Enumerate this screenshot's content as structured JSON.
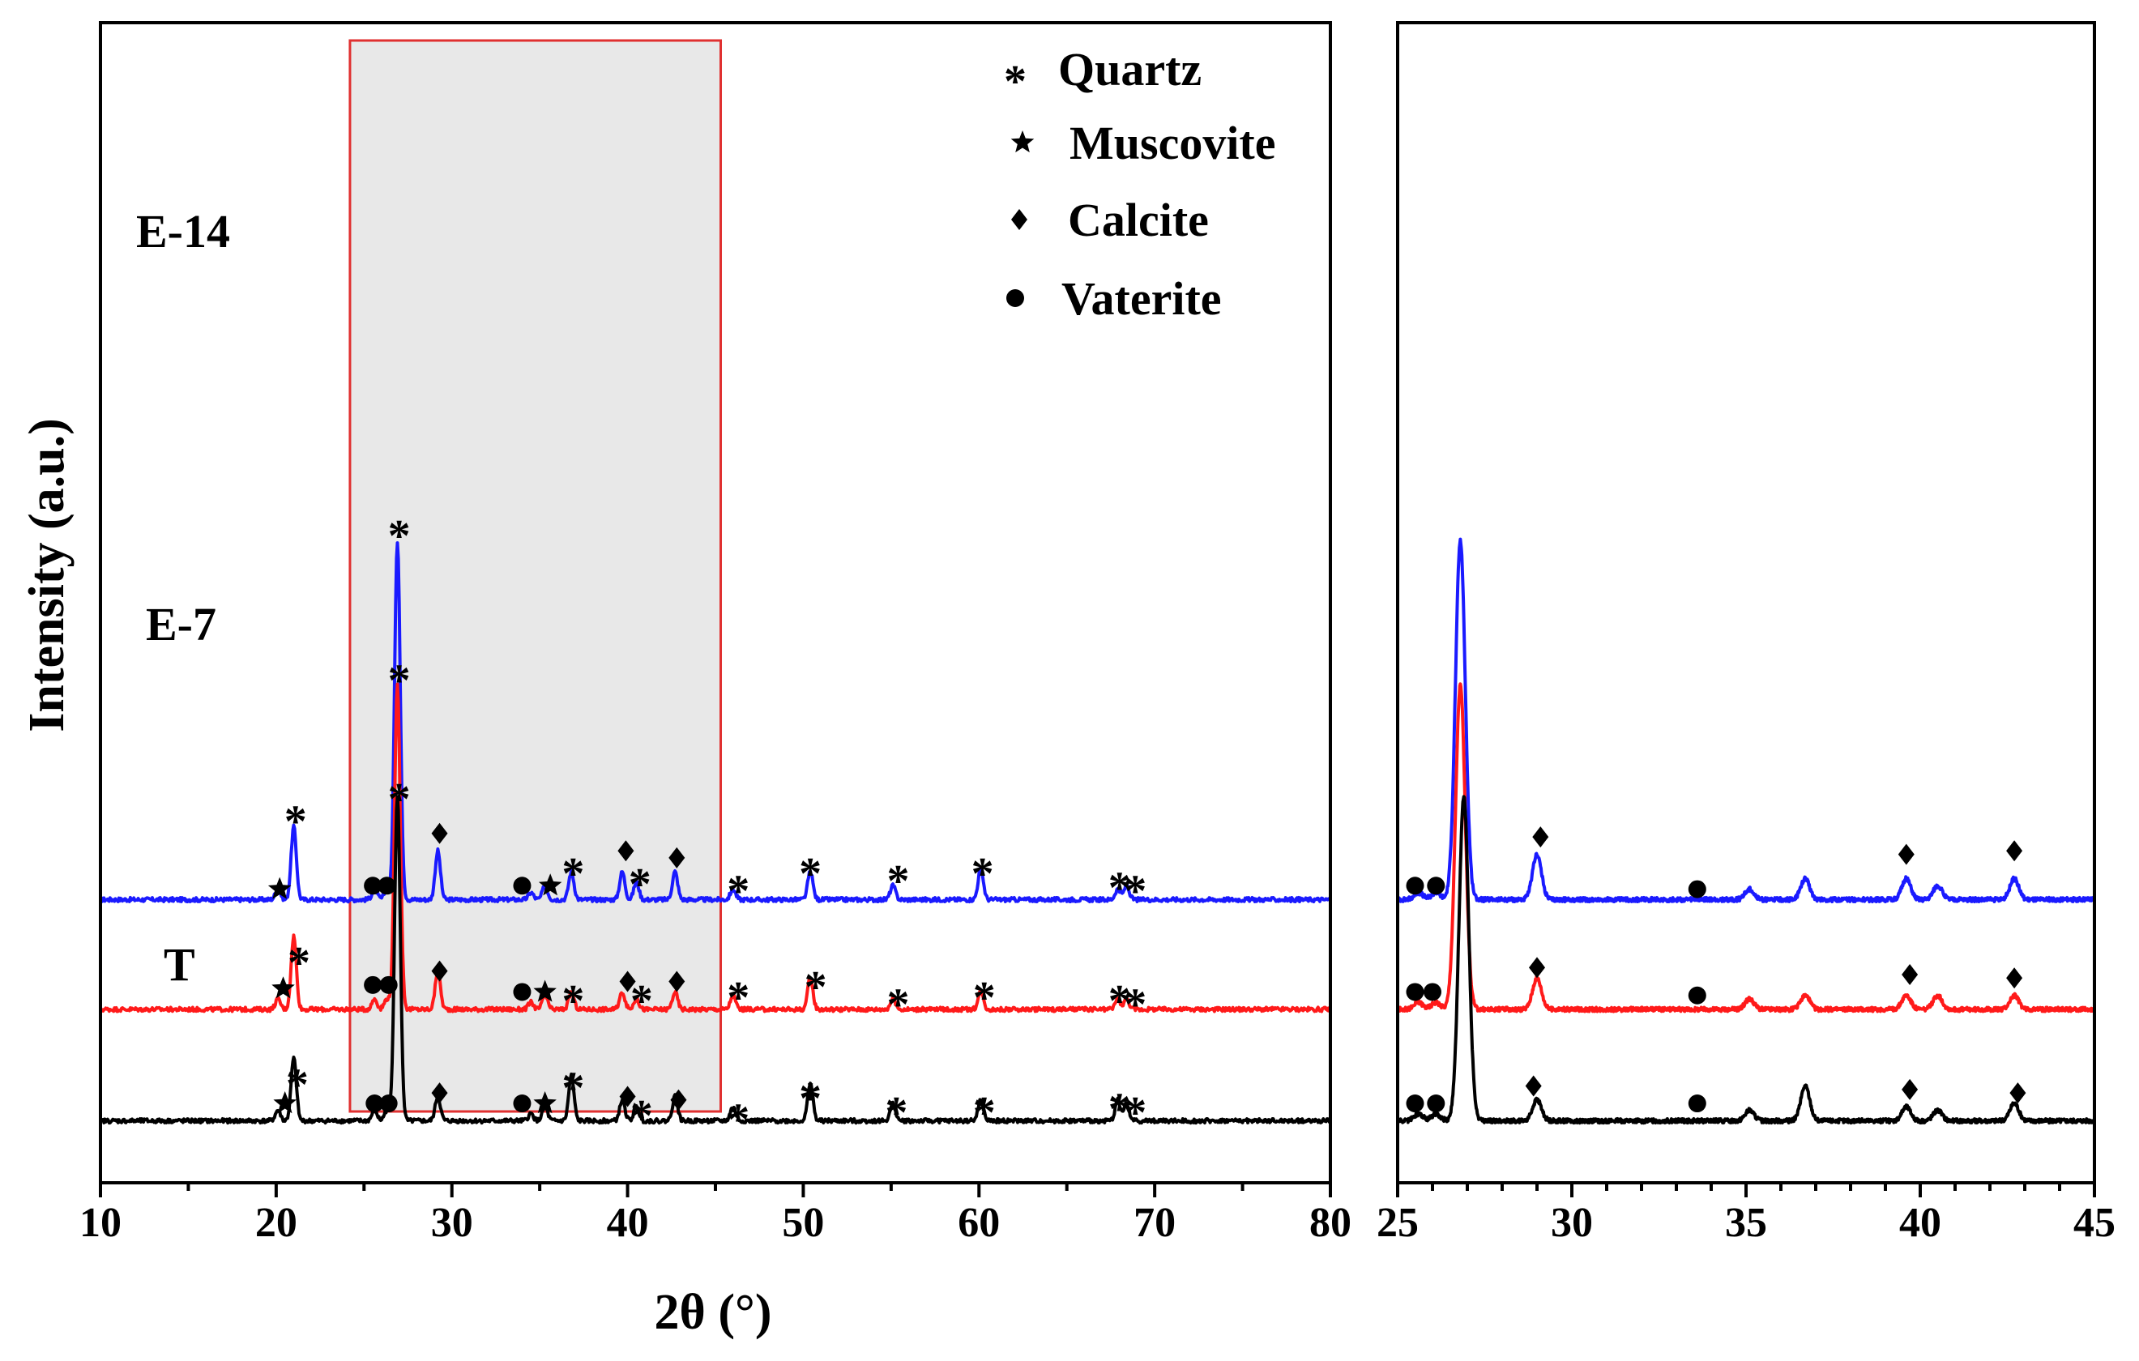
{
  "colors": {
    "E-14": "#1a1aff",
    "E-7": "#ff1a1a",
    "T": "#000000",
    "highlight_fill": "#d6d6d6",
    "highlight_border": "#e03030",
    "axis": "#000000"
  },
  "chart_data": [
    {
      "id": "main",
      "type": "line",
      "xlabel": "2θ (°)",
      "ylabel": "Intensity (a.u.)",
      "xlim": [
        10,
        80
      ],
      "x_ticks": [
        10,
        20,
        30,
        40,
        50,
        60,
        70,
        80
      ],
      "x_minor_step": 5,
      "highlight_range": [
        24.2,
        45.3
      ],
      "series": [
        {
          "name": "E-14",
          "color": "#1a1aff",
          "baseline": 0.65,
          "peaks": [
            {
              "x": 20.1,
              "h": 0.03
            },
            {
              "x": 21.0,
              "h": 0.21
            },
            {
              "x": 25.6,
              "h": 0.03
            },
            {
              "x": 26.3,
              "h": 0.03
            },
            {
              "x": 26.9,
              "h": 1.03
            },
            {
              "x": 29.2,
              "h": 0.14
            },
            {
              "x": 34.5,
              "h": 0.02
            },
            {
              "x": 35.3,
              "h": 0.04
            },
            {
              "x": 36.8,
              "h": 0.08
            },
            {
              "x": 39.7,
              "h": 0.08
            },
            {
              "x": 40.5,
              "h": 0.05
            },
            {
              "x": 42.7,
              "h": 0.08
            },
            {
              "x": 46.0,
              "h": 0.03
            },
            {
              "x": 50.4,
              "h": 0.08
            },
            {
              "x": 55.1,
              "h": 0.04
            },
            {
              "x": 60.1,
              "h": 0.09
            },
            {
              "x": 67.9,
              "h": 0.03
            },
            {
              "x": 68.4,
              "h": 0.04
            }
          ]
        },
        {
          "name": "E-7",
          "color": "#ff1a1a",
          "baseline": 0.335,
          "peaks": [
            {
              "x": 20.1,
              "h": 0.03
            },
            {
              "x": 21.0,
              "h": 0.21
            },
            {
              "x": 25.6,
              "h": 0.03
            },
            {
              "x": 26.3,
              "h": 0.03
            },
            {
              "x": 26.9,
              "h": 0.93
            },
            {
              "x": 29.2,
              "h": 0.11
            },
            {
              "x": 34.5,
              "h": 0.02
            },
            {
              "x": 35.3,
              "h": 0.04
            },
            {
              "x": 36.8,
              "h": 0.05
            },
            {
              "x": 39.7,
              "h": 0.05
            },
            {
              "x": 40.5,
              "h": 0.03
            },
            {
              "x": 42.7,
              "h": 0.05
            },
            {
              "x": 46.0,
              "h": 0.04
            },
            {
              "x": 50.4,
              "h": 0.09
            },
            {
              "x": 55.1,
              "h": 0.03
            },
            {
              "x": 60.1,
              "h": 0.05
            },
            {
              "x": 67.9,
              "h": 0.03
            },
            {
              "x": 68.4,
              "h": 0.03
            }
          ]
        },
        {
          "name": "T",
          "color": "#000000",
          "baseline": 0.015,
          "peaks": [
            {
              "x": 20.1,
              "h": 0.03
            },
            {
              "x": 21.0,
              "h": 0.18
            },
            {
              "x": 25.6,
              "h": 0.03
            },
            {
              "x": 26.3,
              "h": 0.03
            },
            {
              "x": 26.9,
              "h": 0.93
            },
            {
              "x": 29.2,
              "h": 0.07
            },
            {
              "x": 34.5,
              "h": 0.02
            },
            {
              "x": 35.3,
              "h": 0.04
            },
            {
              "x": 36.8,
              "h": 0.13
            },
            {
              "x": 39.7,
              "h": 0.06
            },
            {
              "x": 40.5,
              "h": 0.04
            },
            {
              "x": 42.7,
              "h": 0.07
            },
            {
              "x": 46.0,
              "h": 0.04
            },
            {
              "x": 50.4,
              "h": 0.11
            },
            {
              "x": 55.1,
              "h": 0.05
            },
            {
              "x": 60.1,
              "h": 0.06
            },
            {
              "x": 67.9,
              "h": 0.06
            },
            {
              "x": 68.4,
              "h": 0.05
            }
          ]
        }
      ],
      "sample_labels": [
        {
          "text": "E-14",
          "series": "E-14"
        },
        {
          "text": "E-7",
          "series": "E-7"
        },
        {
          "text": "T",
          "series": "T"
        }
      ],
      "markers": [
        {
          "series": "E-14",
          "symbol": "star",
          "x": 20.2,
          "dy": 0.03
        },
        {
          "series": "E-14",
          "symbol": "asterisk",
          "x": 21.1,
          "dy": 0.26
        },
        {
          "series": "E-14",
          "symbol": "circle",
          "x": 25.5,
          "dy": 0.04
        },
        {
          "series": "E-14",
          "symbol": "circle",
          "x": 26.3,
          "dy": 0.04
        },
        {
          "series": "E-14",
          "symbol": "asterisk",
          "x": 27.0,
          "dy": 1.08
        },
        {
          "series": "E-14",
          "symbol": "diamond",
          "x": 29.3,
          "dy": 0.19
        },
        {
          "series": "E-14",
          "symbol": "circle",
          "x": 34.0,
          "dy": 0.04
        },
        {
          "series": "E-14",
          "symbol": "star",
          "x": 35.6,
          "dy": 0.04
        },
        {
          "series": "E-14",
          "symbol": "asterisk",
          "x": 36.9,
          "dy": 0.11
        },
        {
          "series": "E-14",
          "symbol": "diamond",
          "x": 39.9,
          "dy": 0.14
        },
        {
          "series": "E-14",
          "symbol": "asterisk",
          "x": 40.7,
          "dy": 0.08
        },
        {
          "series": "E-14",
          "symbol": "diamond",
          "x": 42.8,
          "dy": 0.12
        },
        {
          "series": "E-14",
          "symbol": "asterisk",
          "x": 46.3,
          "dy": 0.06
        },
        {
          "series": "E-14",
          "symbol": "asterisk",
          "x": 50.4,
          "dy": 0.11
        },
        {
          "series": "E-14",
          "symbol": "asterisk",
          "x": 55.4,
          "dy": 0.09
        },
        {
          "series": "E-14",
          "symbol": "asterisk",
          "x": 60.2,
          "dy": 0.11
        },
        {
          "series": "E-14",
          "symbol": "asterisk",
          "x": 68.0,
          "dy": 0.07
        },
        {
          "series": "E-14",
          "symbol": "asterisk",
          "x": 68.9,
          "dy": 0.06
        },
        {
          "series": "E-7",
          "symbol": "star",
          "x": 20.4,
          "dy": 0.06
        },
        {
          "series": "E-7",
          "symbol": "asterisk",
          "x": 21.3,
          "dy": 0.17
        },
        {
          "series": "E-7",
          "symbol": "circle",
          "x": 25.5,
          "dy": 0.07
        },
        {
          "series": "E-7",
          "symbol": "circle",
          "x": 26.4,
          "dy": 0.07
        },
        {
          "series": "E-7",
          "symbol": "asterisk",
          "x": 27.0,
          "dy": 0.98
        },
        {
          "series": "E-7",
          "symbol": "diamond",
          "x": 29.3,
          "dy": 0.11
        },
        {
          "series": "E-7",
          "symbol": "circle",
          "x": 34.0,
          "dy": 0.05
        },
        {
          "series": "E-7",
          "symbol": "star",
          "x": 35.3,
          "dy": 0.05
        },
        {
          "series": "E-7",
          "symbol": "asterisk",
          "x": 36.9,
          "dy": 0.06
        },
        {
          "series": "E-7",
          "symbol": "diamond",
          "x": 40.0,
          "dy": 0.08
        },
        {
          "series": "E-7",
          "symbol": "asterisk",
          "x": 40.8,
          "dy": 0.06
        },
        {
          "series": "E-7",
          "symbol": "diamond",
          "x": 42.8,
          "dy": 0.08
        },
        {
          "series": "E-7",
          "symbol": "asterisk",
          "x": 46.3,
          "dy": 0.07
        },
        {
          "series": "E-7",
          "symbol": "asterisk",
          "x": 50.7,
          "dy": 0.1
        },
        {
          "series": "E-7",
          "symbol": "asterisk",
          "x": 55.4,
          "dy": 0.05
        },
        {
          "series": "E-7",
          "symbol": "asterisk",
          "x": 60.3,
          "dy": 0.07
        },
        {
          "series": "E-7",
          "symbol": "asterisk",
          "x": 68.0,
          "dy": 0.06
        },
        {
          "series": "E-7",
          "symbol": "asterisk",
          "x": 68.9,
          "dy": 0.05
        },
        {
          "series": "T",
          "symbol": "star",
          "x": 20.5,
          "dy": 0.05
        },
        {
          "series": "T",
          "symbol": "asterisk",
          "x": 21.2,
          "dy": 0.14
        },
        {
          "series": "T",
          "symbol": "circle",
          "x": 25.6,
          "dy": 0.05
        },
        {
          "series": "T",
          "symbol": "circle",
          "x": 26.4,
          "dy": 0.05
        },
        {
          "series": "T",
          "symbol": "asterisk",
          "x": 27.0,
          "dy": 0.96
        },
        {
          "series": "T",
          "symbol": "diamond",
          "x": 29.3,
          "dy": 0.08
        },
        {
          "series": "T",
          "symbol": "circle",
          "x": 34.0,
          "dy": 0.05
        },
        {
          "series": "T",
          "symbol": "star",
          "x": 35.3,
          "dy": 0.05
        },
        {
          "series": "T",
          "symbol": "asterisk",
          "x": 36.9,
          "dy": 0.13
        },
        {
          "series": "T",
          "symbol": "diamond",
          "x": 40.0,
          "dy": 0.07
        },
        {
          "series": "T",
          "symbol": "asterisk",
          "x": 40.8,
          "dy": 0.05
        },
        {
          "series": "T",
          "symbol": "diamond",
          "x": 42.9,
          "dy": 0.06
        },
        {
          "series": "T",
          "symbol": "asterisk",
          "x": 46.3,
          "dy": 0.04
        },
        {
          "series": "T",
          "symbol": "asterisk",
          "x": 50.4,
          "dy": 0.1
        },
        {
          "series": "T",
          "symbol": "asterisk",
          "x": 55.3,
          "dy": 0.06
        },
        {
          "series": "T",
          "symbol": "asterisk",
          "x": 60.3,
          "dy": 0.06
        },
        {
          "series": "T",
          "symbol": "asterisk",
          "x": 68.0,
          "dy": 0.07
        },
        {
          "series": "T",
          "symbol": "asterisk",
          "x": 68.9,
          "dy": 0.06
        }
      ],
      "legend": {
        "position": "top-right",
        "entries": [
          {
            "symbol": "asterisk",
            "label": "Quartz"
          },
          {
            "symbol": "star",
            "label": "Muscovite"
          },
          {
            "symbol": "diamond",
            "label": "Calcite"
          },
          {
            "symbol": "circle",
            "label": "Vaterite"
          }
        ]
      }
    },
    {
      "id": "inset",
      "type": "line",
      "xlim": [
        25,
        45
      ],
      "x_ticks": [
        25,
        30,
        35,
        40,
        45
      ],
      "x_minor_step": 1,
      "series": [
        {
          "name": "E-14",
          "color": "#1a1aff",
          "baseline": 0.65,
          "peaks": [
            {
              "x": 25.6,
              "h": 0.02
            },
            {
              "x": 26.1,
              "h": 0.02
            },
            {
              "x": 26.8,
              "h": 1.03
            },
            {
              "x": 29.0,
              "h": 0.13
            },
            {
              "x": 35.1,
              "h": 0.03
            },
            {
              "x": 36.7,
              "h": 0.06
            },
            {
              "x": 39.6,
              "h": 0.06
            },
            {
              "x": 40.5,
              "h": 0.04
            },
            {
              "x": 42.7,
              "h": 0.06
            }
          ]
        },
        {
          "name": "E-7",
          "color": "#ff1a1a",
          "baseline": 0.335,
          "peaks": [
            {
              "x": 25.6,
              "h": 0.02
            },
            {
              "x": 26.1,
              "h": 0.02
            },
            {
              "x": 26.8,
              "h": 0.93
            },
            {
              "x": 29.0,
              "h": 0.09
            },
            {
              "x": 35.1,
              "h": 0.03
            },
            {
              "x": 36.7,
              "h": 0.04
            },
            {
              "x": 39.6,
              "h": 0.04
            },
            {
              "x": 40.5,
              "h": 0.04
            },
            {
              "x": 42.7,
              "h": 0.04
            }
          ]
        },
        {
          "name": "T",
          "color": "#000000",
          "baseline": 0.015,
          "peaks": [
            {
              "x": 25.6,
              "h": 0.02
            },
            {
              "x": 26.1,
              "h": 0.02
            },
            {
              "x": 26.9,
              "h": 0.93
            },
            {
              "x": 29.0,
              "h": 0.06
            },
            {
              "x": 35.1,
              "h": 0.03
            },
            {
              "x": 36.7,
              "h": 0.1
            },
            {
              "x": 39.6,
              "h": 0.04
            },
            {
              "x": 40.5,
              "h": 0.03
            },
            {
              "x": 42.7,
              "h": 0.05
            }
          ]
        }
      ],
      "markers": [
        {
          "series": "E-14",
          "symbol": "circle",
          "x": 25.5,
          "dy": 0.04
        },
        {
          "series": "E-14",
          "symbol": "circle",
          "x": 26.1,
          "dy": 0.04
        },
        {
          "series": "E-14",
          "symbol": "diamond",
          "x": 29.1,
          "dy": 0.18
        },
        {
          "series": "E-14",
          "symbol": "circle",
          "x": 33.6,
          "dy": 0.03
        },
        {
          "series": "E-14",
          "symbol": "diamond",
          "x": 39.6,
          "dy": 0.13
        },
        {
          "series": "E-14",
          "symbol": "diamond",
          "x": 42.7,
          "dy": 0.14
        },
        {
          "series": "E-7",
          "symbol": "circle",
          "x": 25.5,
          "dy": 0.05
        },
        {
          "series": "E-7",
          "symbol": "circle",
          "x": 26.0,
          "dy": 0.05
        },
        {
          "series": "E-7",
          "symbol": "diamond",
          "x": 29.0,
          "dy": 0.12
        },
        {
          "series": "E-7",
          "symbol": "circle",
          "x": 33.6,
          "dy": 0.04
        },
        {
          "series": "E-7",
          "symbol": "diamond",
          "x": 39.7,
          "dy": 0.1
        },
        {
          "series": "E-7",
          "symbol": "diamond",
          "x": 42.7,
          "dy": 0.09
        },
        {
          "series": "T",
          "symbol": "circle",
          "x": 25.5,
          "dy": 0.05
        },
        {
          "series": "T",
          "symbol": "circle",
          "x": 26.1,
          "dy": 0.05
        },
        {
          "series": "T",
          "symbol": "diamond",
          "x": 28.9,
          "dy": 0.1
        },
        {
          "series": "T",
          "symbol": "circle",
          "x": 33.6,
          "dy": 0.05
        },
        {
          "series": "T",
          "symbol": "diamond",
          "x": 39.7,
          "dy": 0.09
        },
        {
          "series": "T",
          "symbol": "diamond",
          "x": 42.8,
          "dy": 0.08
        }
      ]
    }
  ]
}
